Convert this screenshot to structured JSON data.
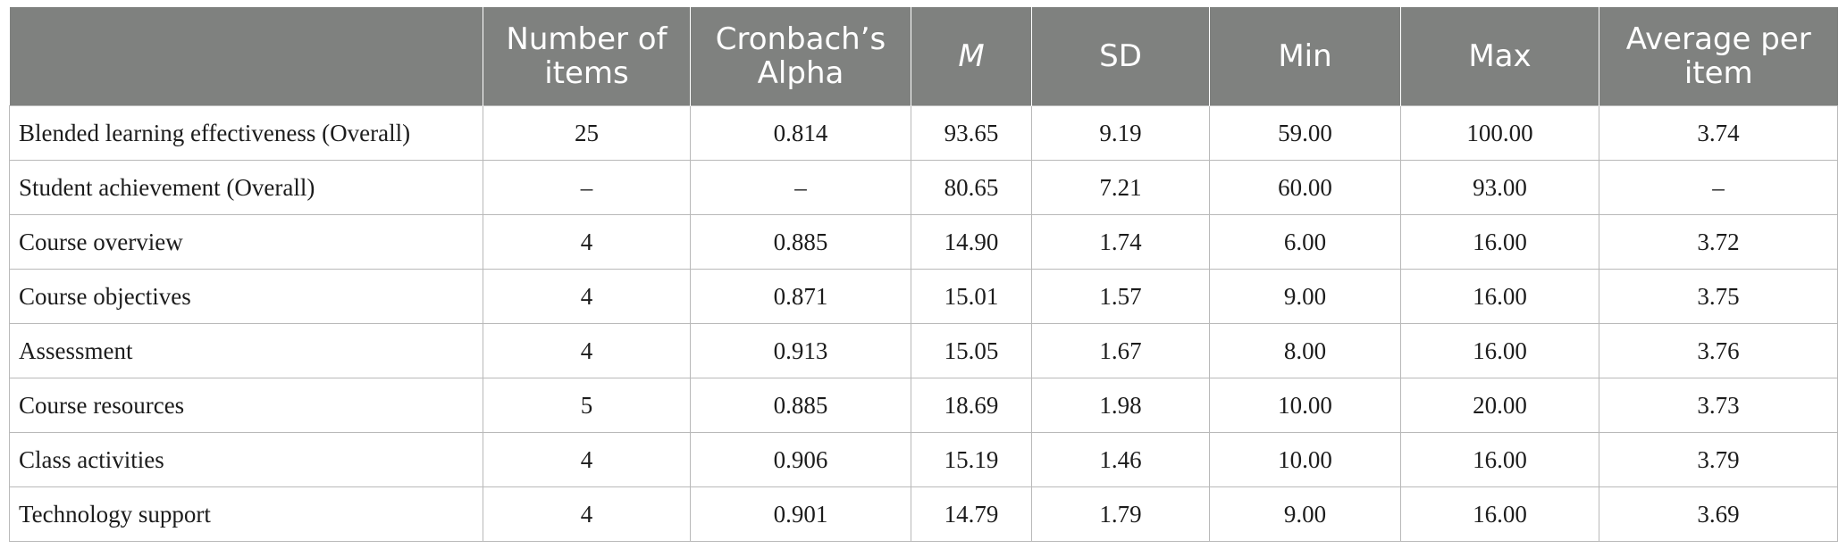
{
  "table": {
    "headers": [
      "",
      "Number of items",
      "Cronbach’s Alpha",
      "M",
      "SD",
      "Min",
      "Max",
      "Average per item"
    ],
    "rows": [
      [
        "Blended learning effectiveness (Overall)",
        "25",
        "0.814",
        "93.65",
        "9.19",
        "59.00",
        "100.00",
        "3.74"
      ],
      [
        "Student achievement (Overall)",
        "–",
        "–",
        "80.65",
        "7.21",
        "60.00",
        "93.00",
        "–"
      ],
      [
        "Course overview",
        "4",
        "0.885",
        "14.90",
        "1.74",
        "6.00",
        "16.00",
        "3.72"
      ],
      [
        "Course objectives",
        "4",
        "0.871",
        "15.01",
        "1.57",
        "9.00",
        "16.00",
        "3.75"
      ],
      [
        "Assessment",
        "4",
        "0.913",
        "15.05",
        "1.67",
        "8.00",
        "16.00",
        "3.76"
      ],
      [
        "Course resources",
        "5",
        "0.885",
        "18.69",
        "1.98",
        "10.00",
        "20.00",
        "3.73"
      ],
      [
        "Class activities",
        "4",
        "0.906",
        "15.19",
        "1.46",
        "10.00",
        "16.00",
        "3.79"
      ],
      [
        "Technology support",
        "4",
        "0.901",
        "14.79",
        "1.79",
        "9.00",
        "16.00",
        "3.69"
      ]
    ]
  },
  "colors": {
    "header_bg": "#7f817f",
    "header_text": "#ffffff",
    "grid_line": "#b9b9b9"
  }
}
